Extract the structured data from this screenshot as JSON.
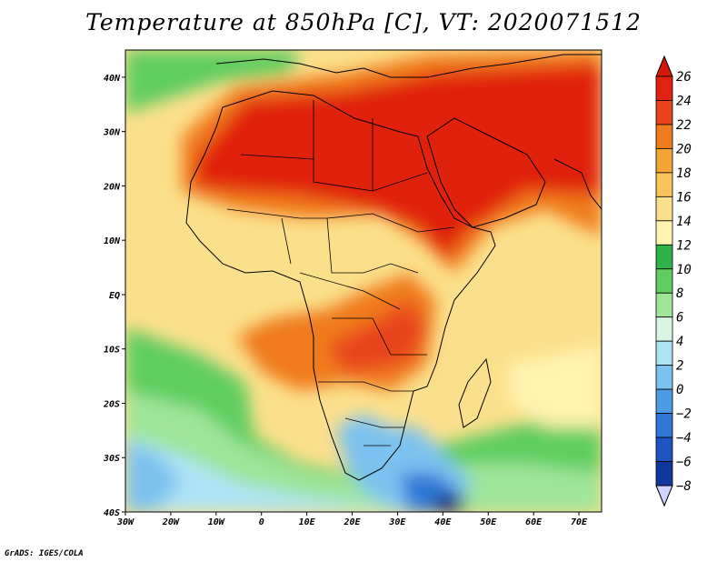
{
  "title": "Temperature at 850hPa [C], VT: 2020071512",
  "credit": "GrADS: IGES/COLA",
  "map": {
    "lon_ticks": [
      "30W",
      "20W",
      "10W",
      "0",
      "10E",
      "20E",
      "30E",
      "40E",
      "50E",
      "60E",
      "70E"
    ],
    "lat_ticks": [
      "40N",
      "30N",
      "20N",
      "10N",
      "EQ",
      "10S",
      "20S",
      "30S",
      "40S"
    ]
  },
  "colorbar": {
    "levels": [
      "26",
      "24",
      "22",
      "20",
      "18",
      "16",
      "14",
      "12",
      "10",
      "8",
      "6",
      "4",
      "2",
      "0",
      "−2",
      "−4",
      "−6",
      "−8"
    ],
    "colors": [
      "#e0230f",
      "#e8451a",
      "#f07a1e",
      "#f5a436",
      "#f9c25a",
      "#fbe08c",
      "#fff3b0",
      "#2eb24a",
      "#5fcd5f",
      "#9ee59a",
      "#d8f7e2",
      "#aee3f5",
      "#7cc2f0",
      "#4b9ce5",
      "#2f78d6",
      "#1e55c2",
      "#10379d",
      "#081f6e"
    ],
    "top_color": "#d4190a",
    "bottom_color": "#cfd3ff"
  }
}
